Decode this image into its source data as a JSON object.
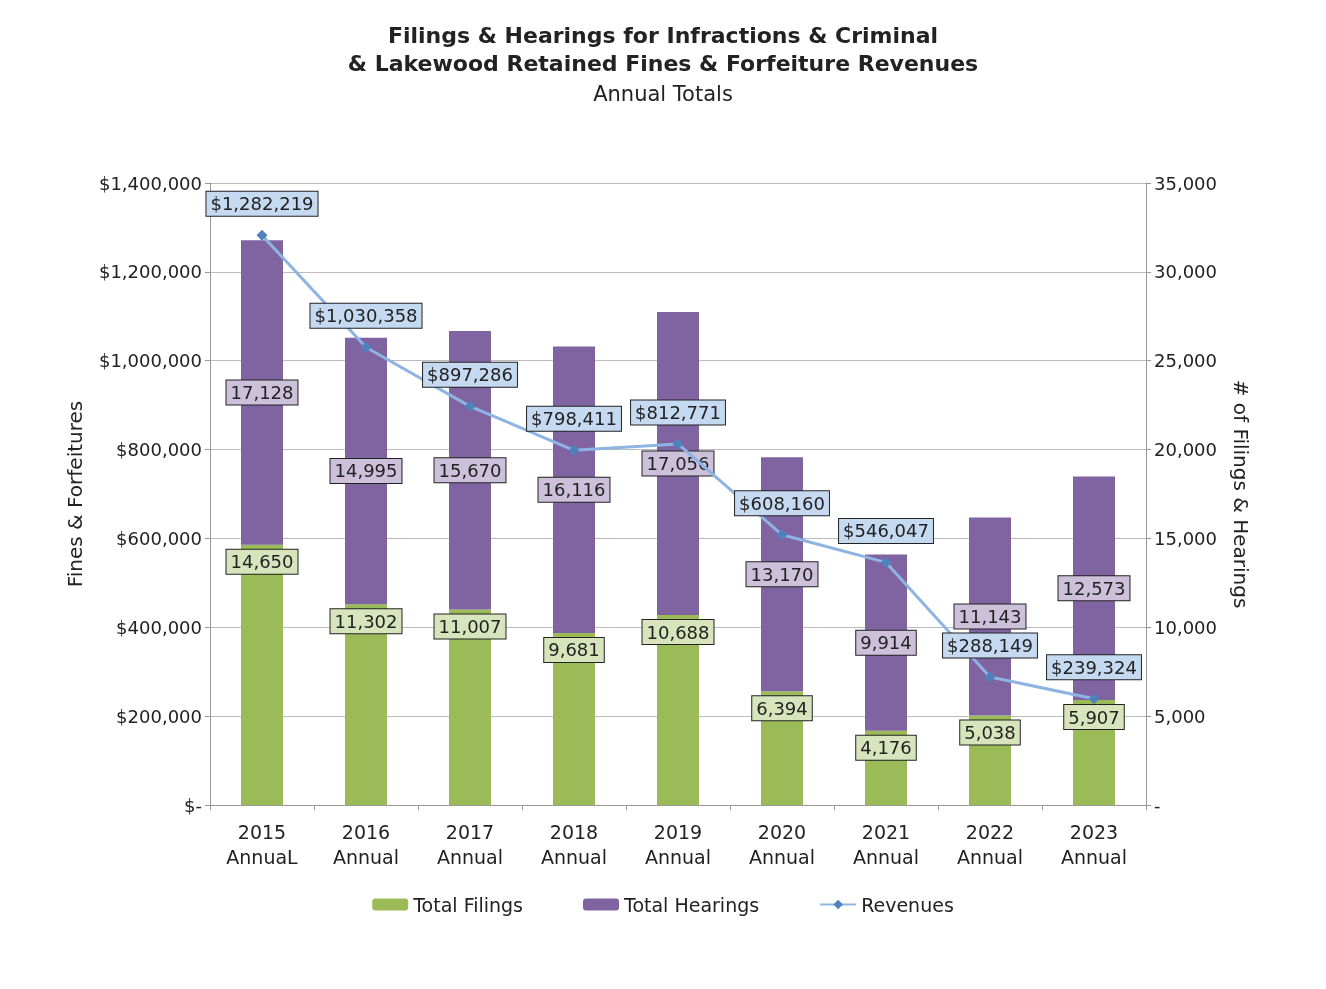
{
  "chart_data": {
    "type": "bar",
    "title": "Filings & Hearings for Infractions & Criminal\n& Lakewood Retained Fines & Forfeiture Revenues",
    "subtitle": "Annual Totals",
    "categories": [
      "2015\nAnnuaL",
      "2016\nAnnual",
      "2017\nAnnual",
      "2018\nAnnual",
      "2019\nAnnual",
      "2020\nAnnual",
      "2021\nAnnual",
      "2022\nAnnual",
      "2023\nAnnual"
    ],
    "ylabel": "Fines & Forfeitures",
    "y2label": "# of Filings & Hearings",
    "ylim": [
      0,
      1400000
    ],
    "yticks": [
      {
        "value": 0,
        "label": "$-"
      },
      {
        "value": 200000,
        "label": "$200,000"
      },
      {
        "value": 400000,
        "label": "$400,000"
      },
      {
        "value": 600000,
        "label": "$600,000"
      },
      {
        "value": 800000,
        "label": "$800,000"
      },
      {
        "value": 1000000,
        "label": "$1,000,000"
      },
      {
        "value": 1200000,
        "label": "$1,200,000"
      },
      {
        "value": 1400000,
        "label": "$1,400,000"
      }
    ],
    "y2lim": [
      0,
      35000
    ],
    "y2ticks": [
      {
        "value": 0,
        "label": "-"
      },
      {
        "value": 5000,
        "label": "5,000"
      },
      {
        "value": 10000,
        "label": "10,000"
      },
      {
        "value": 15000,
        "label": "15,000"
      },
      {
        "value": 20000,
        "label": "20,000"
      },
      {
        "value": 25000,
        "label": "25,000"
      },
      {
        "value": 30000,
        "label": "30,000"
      },
      {
        "value": 35000,
        "label": "35,000"
      }
    ],
    "stacked": true,
    "grid": "y",
    "legend": "bottom",
    "series": [
      {
        "name": "Total Filings",
        "axis": "y2",
        "color": "#9bbb59",
        "values": [
          14650,
          11302,
          11007,
          9681,
          10688,
          6394,
          4176,
          5038,
          5907
        ],
        "value_labels": [
          "14,650",
          "11,302",
          "11,007",
          "9,681",
          "10,688",
          "6,394",
          "4,176",
          "5,038",
          "5,907"
        ]
      },
      {
        "name": "Total Hearings",
        "axis": "y2",
        "color": "#8064a2",
        "values": [
          17128,
          14995,
          15670,
          16116,
          17056,
          13170,
          9914,
          11143,
          12573
        ],
        "value_labels": [
          "17,128",
          "14,995",
          "15,670",
          "16,116",
          "17,056",
          "13,170",
          "9,914",
          "11,143",
          "12,573"
        ]
      },
      {
        "name": "Revenues",
        "type": "line",
        "axis": "y",
        "color": "#8db4e2",
        "marker": "diamond",
        "line_style": "solid",
        "values": [
          1282219,
          1030358,
          897286,
          798411,
          812771,
          608160,
          546047,
          288149,
          239324
        ],
        "value_labels": [
          "$1,282,219",
          "$1,030,358",
          "$897,286",
          "$798,411",
          "$812,771",
          "$608,160",
          "$546,047",
          "$288,149",
          "$239,324"
        ]
      }
    ]
  }
}
